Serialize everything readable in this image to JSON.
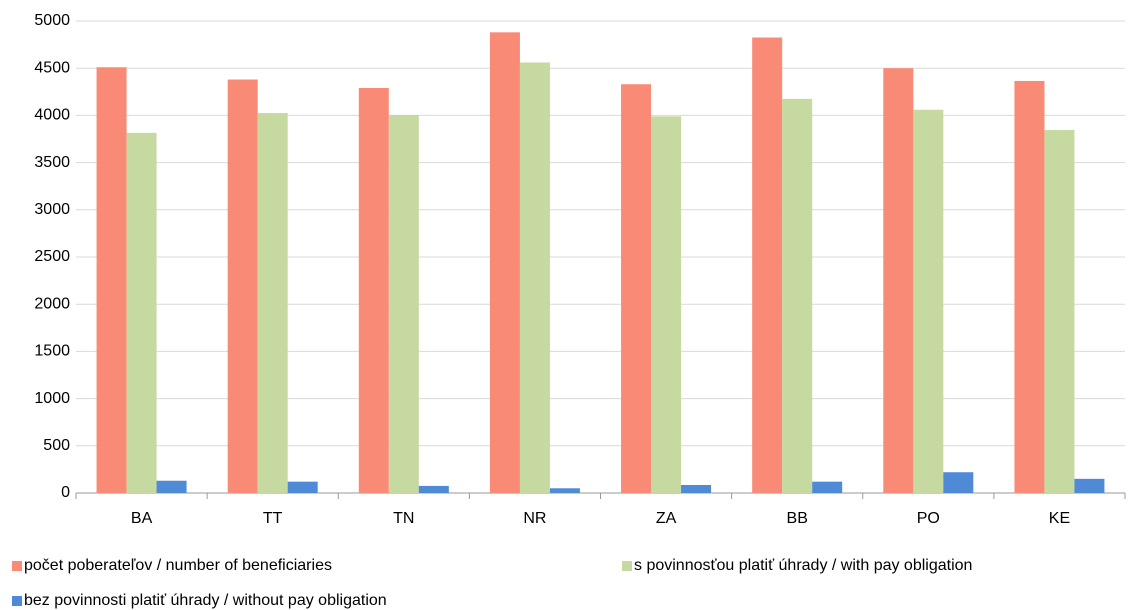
{
  "chart_data": {
    "type": "bar",
    "categories": [
      "BA",
      "TT",
      "TN",
      "NR",
      "ZA",
      "BB",
      "PO",
      "KE"
    ],
    "series": [
      {
        "name": "počet poberateľov / number of beneficiaries",
        "color": "#f98a76",
        "values": [
          4510,
          4380,
          4290,
          4880,
          4330,
          4825,
          4500,
          4365
        ]
      },
      {
        "name": "s povinnosťou platiť úhrady / with pay obligation",
        "color": "#c6d9a0",
        "values": [
          3815,
          4025,
          4005,
          4560,
          3990,
          4175,
          4060,
          3845
        ]
      },
      {
        "name": "bez povinnosti platiť úhrady / without pay obligation",
        "color": "#4f8ad6",
        "values": [
          130,
          120,
          75,
          50,
          85,
          120,
          220,
          150
        ]
      }
    ],
    "ylim": [
      0,
      5000
    ],
    "yticks": [
      0,
      500,
      1000,
      1500,
      2000,
      2500,
      3000,
      3500,
      4000,
      4500,
      5000
    ],
    "grid": true
  }
}
